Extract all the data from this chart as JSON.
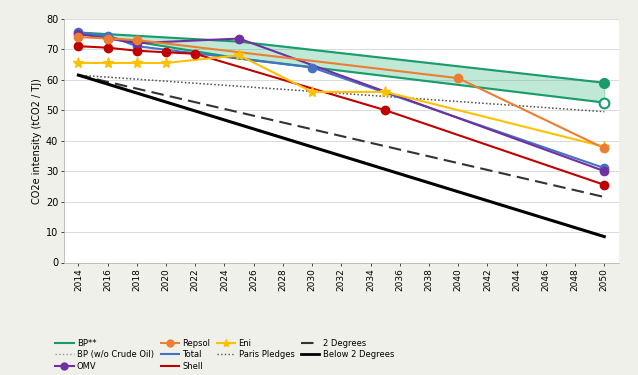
{
  "title": "",
  "ylabel": "CO2e intensity (tCO2 / TJ)",
  "ylim": [
    0,
    80
  ],
  "yticks": [
    0,
    10,
    20,
    30,
    40,
    50,
    60,
    70,
    80
  ],
  "xticks": [
    2014,
    2016,
    2018,
    2020,
    2022,
    2024,
    2026,
    2028,
    2030,
    2032,
    2034,
    2036,
    2038,
    2040,
    2042,
    2044,
    2046,
    2048,
    2050
  ],
  "xlim": [
    2013,
    2051
  ],
  "bg_color": "#f0f0eb",
  "plot_bg": "#ffffff",
  "series": {
    "BP_upper": {
      "x": [
        2014,
        2025,
        2050
      ],
      "y": [
        75.5,
        72.5,
        59.0
      ],
      "color": "#1a9b6b",
      "lw": 1.5
    },
    "BP_lower": {
      "x": [
        2014,
        2025,
        2050
      ],
      "y": [
        75.5,
        67.0,
        52.5
      ],
      "color": "#1a9b6b",
      "lw": 1.5
    },
    "BP_wo_crude": {
      "x": [
        2014,
        2050
      ],
      "y": [
        61.5,
        49.5
      ],
      "color": "#999999",
      "lw": 1.0,
      "linestyle": "dotted"
    },
    "Total": {
      "x": [
        2014,
        2016,
        2018,
        2030,
        2050
      ],
      "y": [
        75.5,
        74.5,
        71.0,
        64.0,
        31.0
      ],
      "color": "#4472c4",
      "lw": 1.5
    },
    "Shell": {
      "x": [
        2014,
        2016,
        2018,
        2020,
        2022,
        2035,
        2050
      ],
      "y": [
        71.0,
        70.5,
        69.5,
        69.0,
        68.5,
        50.0,
        25.5
      ],
      "color": "#c00000",
      "lw": 1.5
    },
    "OMV": {
      "x": [
        2014,
        2016,
        2018,
        2025,
        2050
      ],
      "y": [
        75.0,
        73.5,
        72.0,
        73.5,
        30.0
      ],
      "color": "#7030a0",
      "lw": 1.5
    },
    "Eni": {
      "x": [
        2014,
        2016,
        2018,
        2020,
        2025,
        2030,
        2035,
        2050
      ],
      "y": [
        65.5,
        65.5,
        65.5,
        65.5,
        68.0,
        56.0,
        56.0,
        38.0
      ],
      "color": "#ffc000",
      "lw": 1.5
    },
    "Repsol": {
      "x": [
        2014,
        2016,
        2018,
        2040,
        2050
      ],
      "y": [
        74.0,
        73.5,
        73.0,
        60.5,
        37.5
      ],
      "color": "#ed7d31",
      "lw": 1.5
    },
    "Paris_Pledges": {
      "x": [
        2014,
        2050
      ],
      "y": [
        61.5,
        49.5
      ],
      "color": "#555555",
      "lw": 1.0,
      "linestyle": "dotted"
    },
    "Two_Degrees": {
      "x": [
        2014,
        2050
      ],
      "y": [
        61.5,
        21.5
      ],
      "color": "#333333",
      "lw": 1.5,
      "linestyle": "dashed"
    },
    "Below_Two_Degrees": {
      "x": [
        2014,
        2050
      ],
      "y": [
        61.5,
        8.5
      ],
      "color": "#000000",
      "lw": 2.2,
      "linestyle": "solid"
    }
  }
}
